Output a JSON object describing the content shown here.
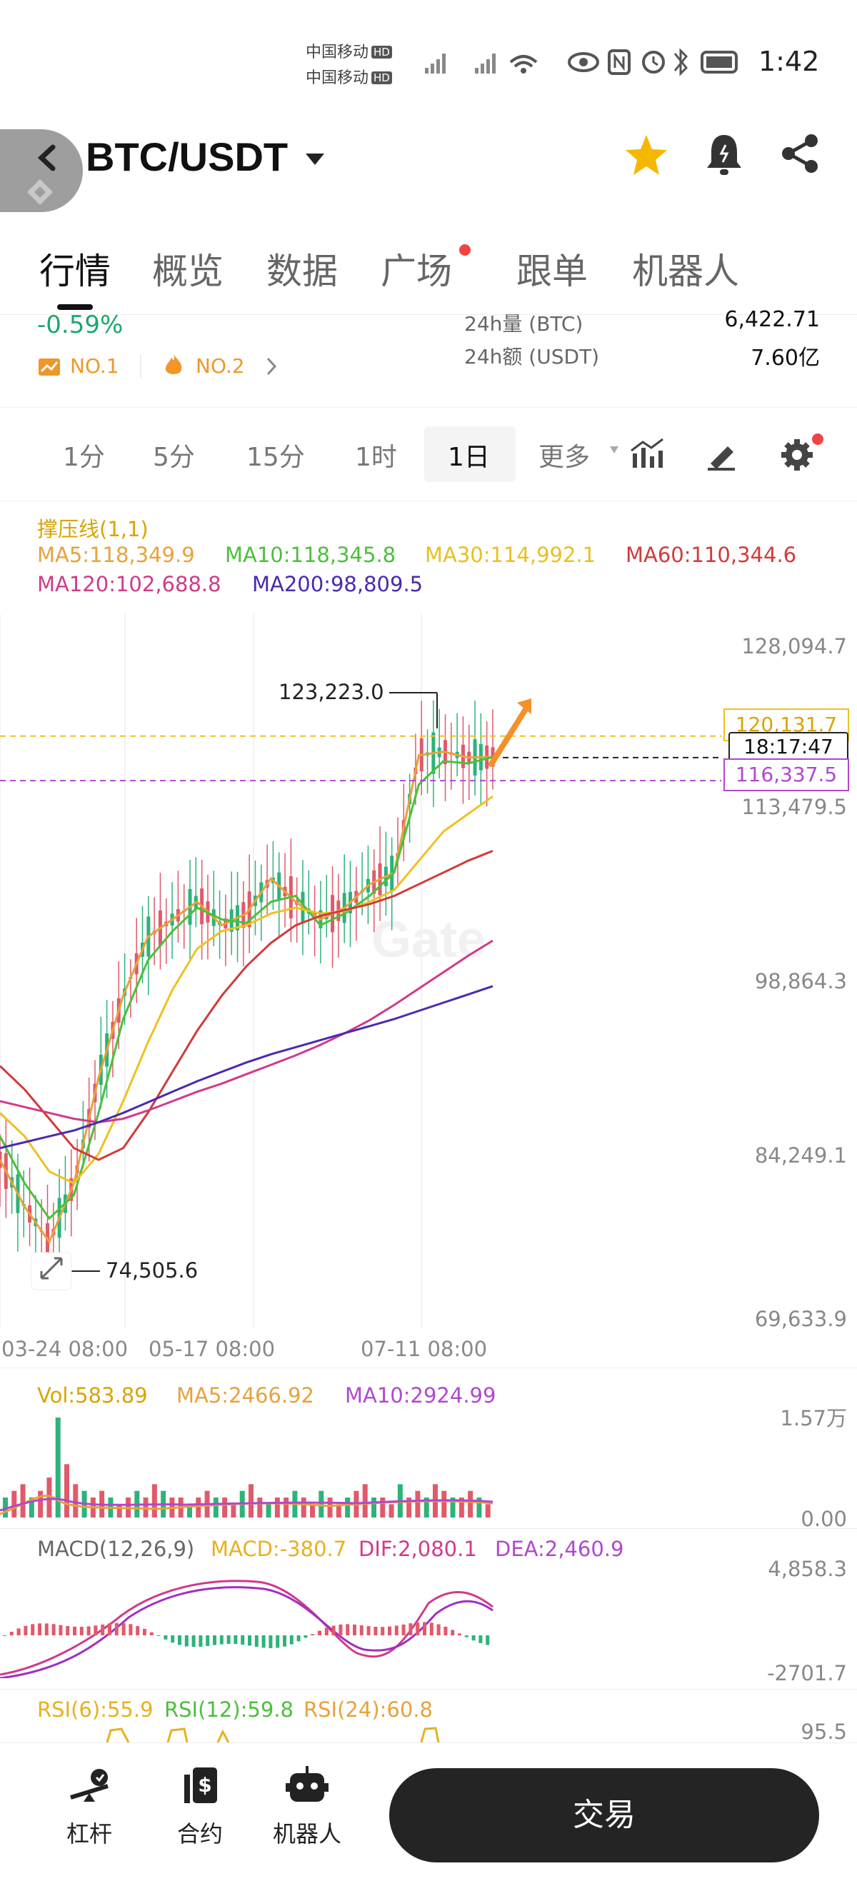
{
  "status_bar": {
    "carrier_1": "中国移动",
    "carrier_2": "中国移动",
    "hd": "HD",
    "time": "1:42"
  },
  "header": {
    "title": "BTC/USDT",
    "icons": [
      "back-icon",
      "exchange-logo-icon",
      "dropdown-icon",
      "star-icon",
      "bell-icon",
      "share-icon"
    ],
    "star_color": "#f5b800"
  },
  "tabs": [
    "行情",
    "概览",
    "数据",
    "广场",
    "跟单",
    "机器人"
  ],
  "stats": {
    "change_pct": "-0.59%",
    "rank_1": "NO.1",
    "rank_2": "NO.2",
    "vol_label": "24h量 (BTC)",
    "vol_value": "6,422.71",
    "amount_label": "24h额 (USDT)",
    "amount_value": "7.60亿"
  },
  "timeframes": [
    "1分",
    "5分",
    "15分",
    "1时",
    "1日",
    "更多"
  ],
  "timeframe_selected": "1日",
  "indicators": {
    "support": "撑压线(1,1)",
    "ma5": "MA5:118,349.9",
    "ma10": "MA10:118,345.8",
    "ma30": "MA30:114,992.1",
    "ma60": "MA60:110,344.6",
    "ma120": "MA120:102,688.8",
    "ma200": "MA200:98,809.5"
  },
  "colors": {
    "ma5": "#e8a23b",
    "ma10": "#4cbf3c",
    "ma30": "#f0c020",
    "ma60": "#d23a3a",
    "ma120": "#d13a8a",
    "ma200": "#4a2ab0",
    "up": "#e05a6a",
    "down": "#2db37a",
    "accent_arrow": "#f5902a"
  },
  "chart_data": {
    "type": "line",
    "title": "",
    "y_axis_labels": [
      "128,094.7",
      "113,479.5",
      "98,864.3",
      "84,249.1",
      "69,633.9"
    ],
    "ylim": [
      69633.9,
      128094.7
    ],
    "x_labels": [
      "03-24 08:00",
      "05-17 08:00",
      "07-11 08:00"
    ],
    "high_label": "123,223.0",
    "low_label": "74,505.6",
    "price_tag_upper": "120,131.7",
    "countdown": "18:17:47",
    "price_tag_lower": "116,337.5",
    "watermark": "Gate",
    "series": [
      {
        "name": "MA5",
        "values": [
          84000,
          80000,
          77000,
          82000,
          91000,
          98000,
          103000,
          104500,
          106000,
          104000,
          105000,
          108000,
          106000,
          104500,
          105500,
          107500,
          108500,
          118500,
          118800,
          118300,
          118350
        ]
      },
      {
        "name": "MA10",
        "values": [
          86000,
          82000,
          79000,
          81000,
          88000,
          96000,
          101000,
          103500,
          105500,
          104500,
          104200,
          106000,
          106500,
          104000,
          105000,
          106500,
          108500,
          116000,
          118000,
          117800,
          118346
        ]
      },
      {
        "name": "MA30",
        "values": [
          88000,
          86000,
          83000,
          82000,
          84500,
          89000,
          94000,
          98500,
          102000,
          103500,
          104000,
          105000,
          105500,
          105000,
          105200,
          106000,
          107000,
          109500,
          112000,
          113500,
          114992
        ]
      },
      {
        "name": "MA60",
        "values": [
          92000,
          90000,
          87500,
          85000,
          84000,
          85000,
          88000,
          91500,
          95000,
          98000,
          100500,
          102500,
          104000,
          104800,
          105300,
          105800,
          106500,
          107500,
          108500,
          109500,
          110345
        ]
      },
      {
        "name": "MA120",
        "values": [
          89000,
          88500,
          88000,
          87500,
          87200,
          87500,
          88200,
          89000,
          89800,
          90500,
          91300,
          92100,
          92900,
          93800,
          94800,
          95900,
          97200,
          98600,
          100000,
          101400,
          102689
        ]
      },
      {
        "name": "MA200",
        "values": [
          85000,
          85500,
          86000,
          86500,
          87200,
          88000,
          88900,
          89800,
          90700,
          91500,
          92300,
          93000,
          93600,
          94200,
          94800,
          95400,
          96000,
          96700,
          97400,
          98100,
          98810
        ]
      }
    ]
  },
  "volume_panel": {
    "vol": "Vol:583.89",
    "ma5": "MA5:2466.92",
    "ma10": "MA10:2924.99",
    "axis_top": "1.57万",
    "axis_bottom": "0.00",
    "values": [
      3,
      4,
      5,
      3,
      4,
      6,
      15,
      8,
      5,
      4,
      3,
      4,
      3,
      2,
      3,
      4,
      3,
      5,
      4,
      3,
      3,
      2,
      3,
      4,
      3,
      3,
      2,
      4,
      5,
      3,
      2,
      3,
      3,
      4,
      3,
      2,
      4,
      3,
      2,
      3,
      4,
      5,
      3,
      3,
      2,
      5,
      3,
      4,
      3,
      5,
      4,
      3,
      3,
      4,
      3,
      2
    ]
  },
  "macd_panel": {
    "label": "MACD(12,26,9)",
    "macd": "MACD:-380.7",
    "dif": "DIF:2,080.1",
    "dea": "DEA:2,460.9",
    "axis_top": "4,858.3",
    "axis_bottom": "-2701.7"
  },
  "rsi_panel": {
    "rsi6": "RSI(6):55.9",
    "rsi12": "RSI(12):59.8",
    "rsi24": "RSI(24):60.8",
    "axis_top": "95.5"
  },
  "bottom_nav": {
    "items": [
      "杠杆",
      "合约",
      "机器人"
    ],
    "trade": "交易"
  }
}
